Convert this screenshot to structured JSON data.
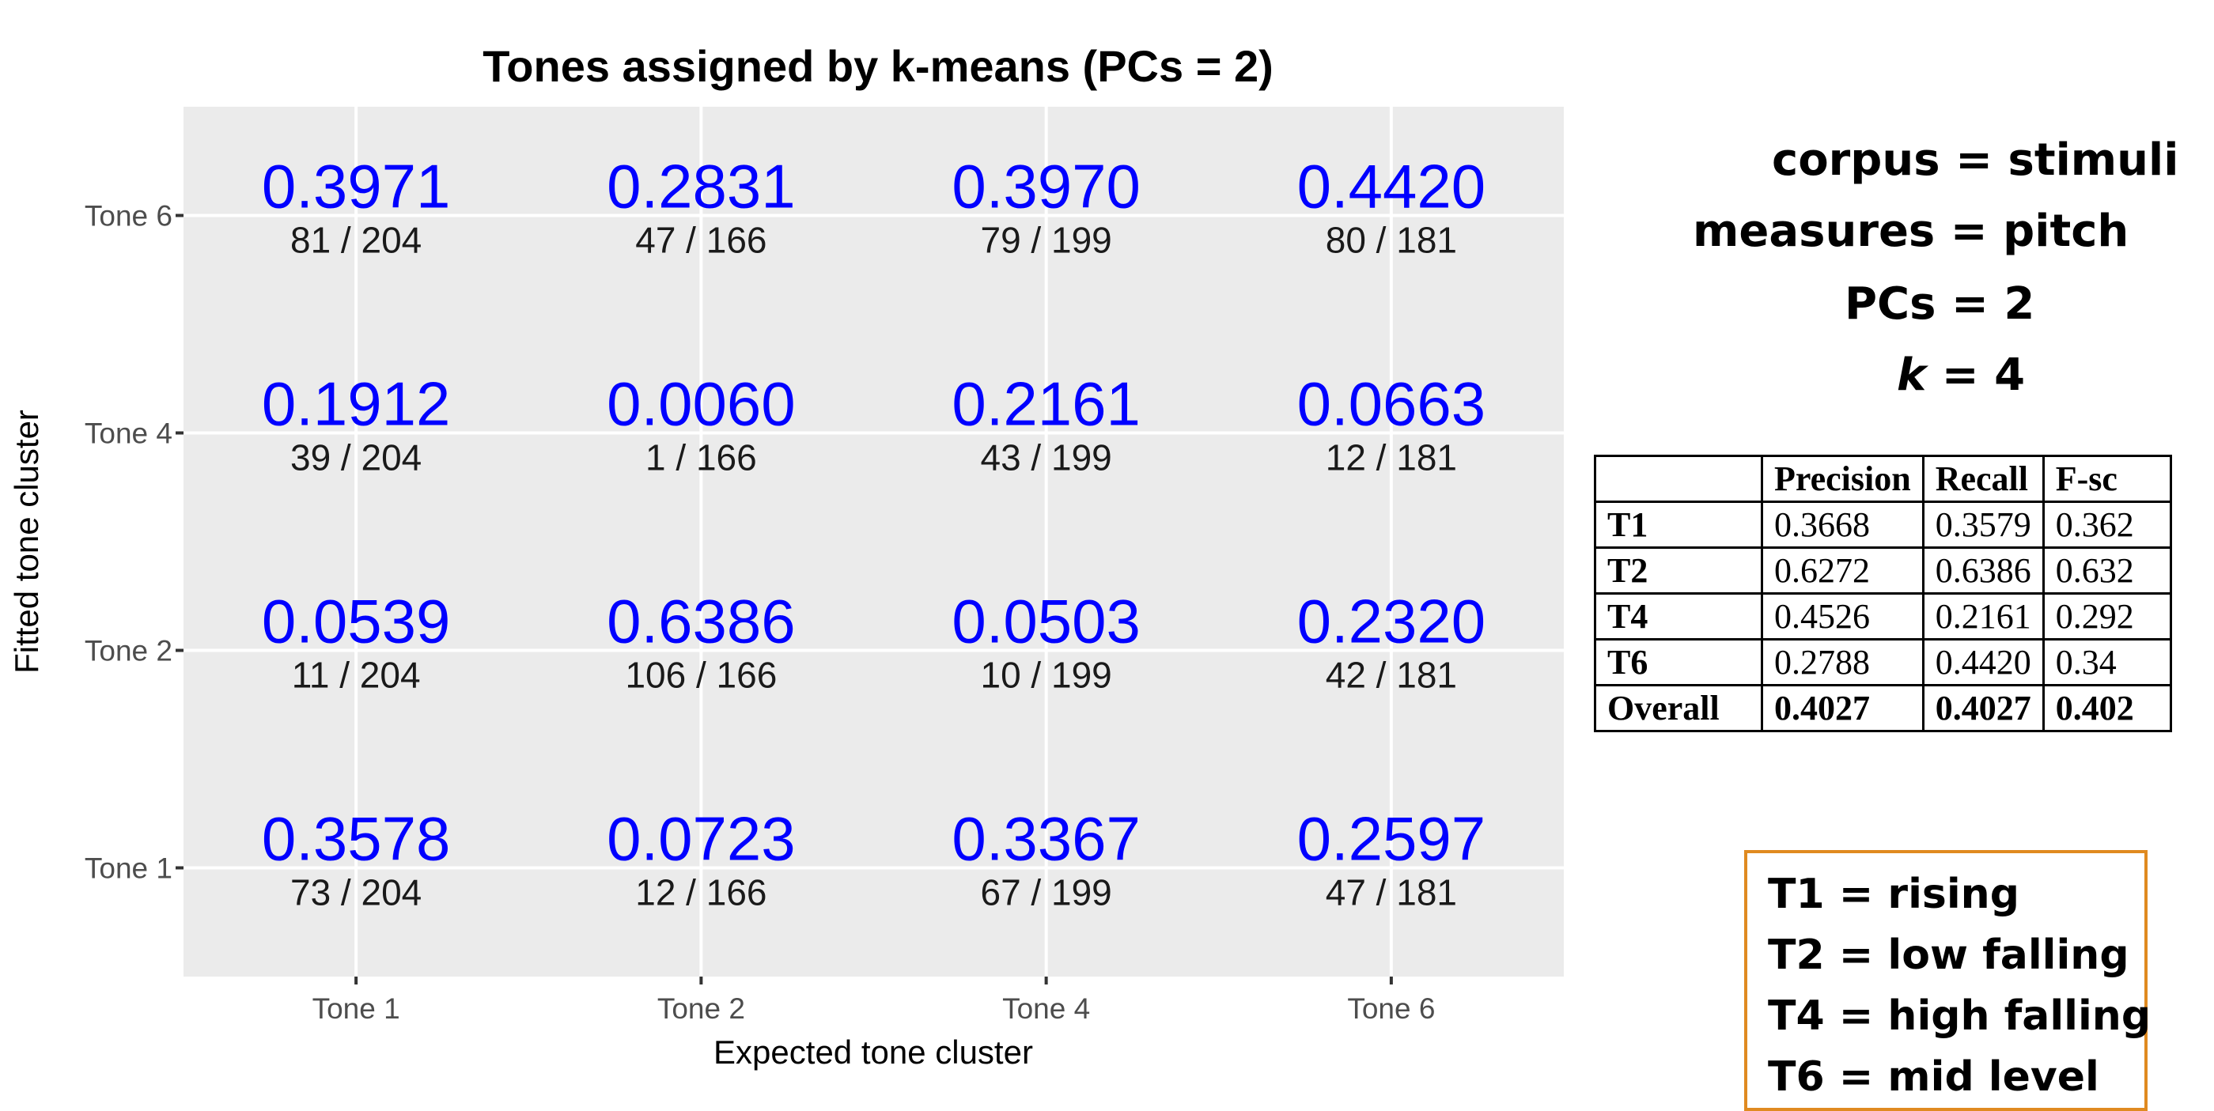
{
  "chart_data": {
    "type": "heatmap",
    "title": "Tones assigned by k-means (PCs = 2)",
    "xlabel": "Expected tone cluster",
    "ylabel": "Fitted tone cluster",
    "x_categories": [
      "Tone 1",
      "Tone 2",
      "Tone 4",
      "Tone 6"
    ],
    "y_categories": [
      "Tone 1",
      "Tone 2",
      "Tone 4",
      "Tone 6"
    ],
    "cells": [
      {
        "x": "Tone 1",
        "y": "Tone 6",
        "value": "0.3971",
        "count": "81 / 204"
      },
      {
        "x": "Tone 2",
        "y": "Tone 6",
        "value": "0.2831",
        "count": "47 / 166"
      },
      {
        "x": "Tone 4",
        "y": "Tone 6",
        "value": "0.3970",
        "count": "79 / 199"
      },
      {
        "x": "Tone 6",
        "y": "Tone 6",
        "value": "0.4420",
        "count": "80 / 181"
      },
      {
        "x": "Tone 1",
        "y": "Tone 4",
        "value": "0.1912",
        "count": "39 / 204"
      },
      {
        "x": "Tone 2",
        "y": "Tone 4",
        "value": "0.0060",
        "count": "1 / 166"
      },
      {
        "x": "Tone 4",
        "y": "Tone 4",
        "value": "0.2161",
        "count": "43 / 199"
      },
      {
        "x": "Tone 6",
        "y": "Tone 4",
        "value": "0.0663",
        "count": "12 / 181"
      },
      {
        "x": "Tone 1",
        "y": "Tone 2",
        "value": "0.0539",
        "count": "11 / 204"
      },
      {
        "x": "Tone 2",
        "y": "Tone 2",
        "value": "0.6386",
        "count": "106 / 166"
      },
      {
        "x": "Tone 4",
        "y": "Tone 2",
        "value": "0.0503",
        "count": "10 / 199"
      },
      {
        "x": "Tone 6",
        "y": "Tone 2",
        "value": "0.2320",
        "count": "42 / 181"
      },
      {
        "x": "Tone 1",
        "y": "Tone 1",
        "value": "0.3578",
        "count": "73 / 204"
      },
      {
        "x": "Tone 2",
        "y": "Tone 1",
        "value": "0.0723",
        "count": "12 / 166"
      },
      {
        "x": "Tone 4",
        "y": "Tone 1",
        "value": "0.3367",
        "count": "67 / 199"
      },
      {
        "x": "Tone 6",
        "y": "Tone 1",
        "value": "0.2597",
        "count": "47 / 181"
      }
    ],
    "colors": {
      "panel": "#ebebeb",
      "grid": "#ffffff",
      "value_text": "#0000ff",
      "count_text": "#1a1a1a",
      "axis_text": "#4d4d4d"
    }
  },
  "info": {
    "corpus": "corpus = stimuli",
    "measures": "measures = pitch",
    "pcs": "PCs = 2",
    "k_symbol": "k",
    "k_value": " = 4"
  },
  "metrics_table": {
    "headers": [
      "",
      "Precision",
      "Recall",
      "F-sc"
    ],
    "rows": [
      [
        "T1",
        "0.3668",
        "0.3579",
        "0.362"
      ],
      [
        "T2",
        "0.6272",
        "0.6386",
        "0.632"
      ],
      [
        "T4",
        "0.4526",
        "0.2161",
        "0.292"
      ],
      [
        "T6",
        "0.2788",
        "0.4420",
        "0.34"
      ],
      [
        "Overall",
        "0.4027",
        "0.4027",
        "0.402"
      ]
    ]
  },
  "legend_box": {
    "lines": [
      "T1 = rising",
      "T2 = low falling",
      "T4 = high falling",
      "T6 = mid level"
    ],
    "border_color": "#e08a20"
  }
}
